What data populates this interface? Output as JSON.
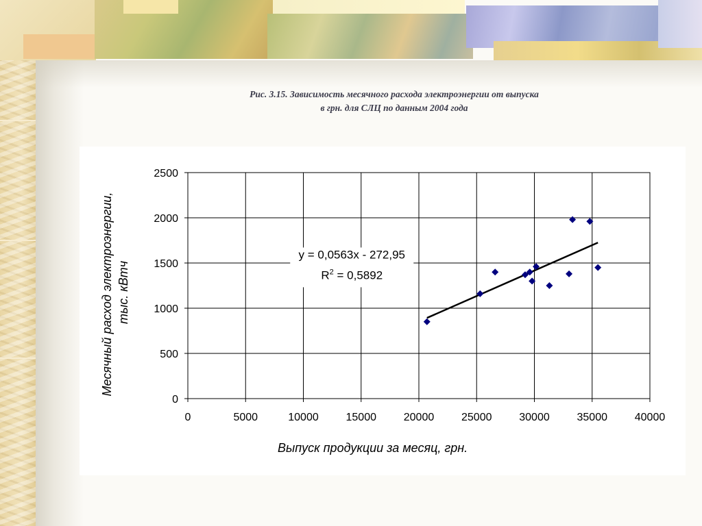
{
  "caption": {
    "line1": "Рис. 3.15. Зависимость месячного расхода электроэнергии от выпуска",
    "line2": "в грн. для СЛЦ по данным 2004 года"
  },
  "chart_data": {
    "type": "scatter",
    "xlabel": "Выпуск продукции за месяц, грн.",
    "ylabel_lines": [
      "Месячный расход электроэнергии,",
      "тыс. кВтч"
    ],
    "xlim": [
      0,
      40000
    ],
    "ylim": [
      0,
      2500
    ],
    "x_ticks": [
      "0",
      "5000",
      "10000",
      "15000",
      "20000",
      "25000",
      "30000",
      "35000",
      "40000"
    ],
    "y_ticks": [
      "0",
      "500",
      "1000",
      "1500",
      "2000",
      "2500"
    ],
    "x_tick_values": [
      0,
      5000,
      10000,
      15000,
      20000,
      25000,
      30000,
      35000,
      40000
    ],
    "y_tick_values": [
      0,
      500,
      1000,
      1500,
      2000,
      2500
    ],
    "grid": true,
    "marker_color": "#00007f",
    "points": [
      {
        "x": 20700,
        "y": 850
      },
      {
        "x": 25300,
        "y": 1160
      },
      {
        "x": 26600,
        "y": 1400
      },
      {
        "x": 29200,
        "y": 1370
      },
      {
        "x": 29600,
        "y": 1400
      },
      {
        "x": 29800,
        "y": 1300
      },
      {
        "x": 30150,
        "y": 1460
      },
      {
        "x": 31300,
        "y": 1250
      },
      {
        "x": 33000,
        "y": 1380
      },
      {
        "x": 33300,
        "y": 1980
      },
      {
        "x": 34800,
        "y": 1960
      },
      {
        "x": 35500,
        "y": 1450
      }
    ],
    "trendline": {
      "slope": 0.0563,
      "intercept": -272.95,
      "x_range": [
        20700,
        35500
      ],
      "equation": "y = 0,0563x - 272,95",
      "r2_label": "R",
      "r2_sup": "2",
      "r2_value": " = 0,5892"
    }
  }
}
